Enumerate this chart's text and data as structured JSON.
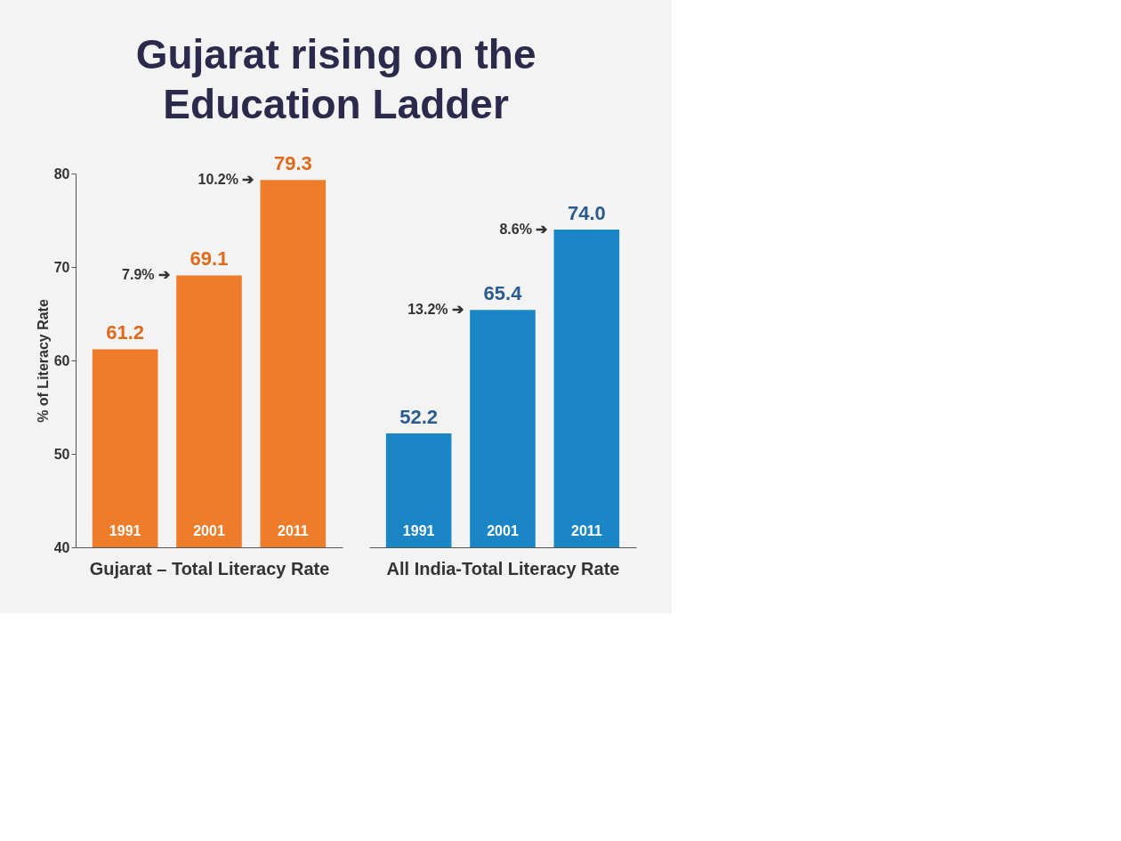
{
  "chart_data": [
    {
      "type": "bar",
      "title": "Gujarat rising on the\nEducation Ladder",
      "ylabel": "% of Literacy Rate",
      "xlabel": "Gujarat – Total Literacy Rate",
      "categories": [
        "1991",
        "2001",
        "2011"
      ],
      "values": [
        61.2,
        69.1,
        79.3
      ],
      "value_labels": [
        "61.2",
        "69.1",
        "79.3"
      ],
      "color": "#ee7d2b",
      "ylim": [
        40,
        80
      ],
      "yticks": [
        40,
        50,
        60,
        70,
        80
      ],
      "grid": false,
      "annotations": [
        "7.9% ➔",
        "10.2% ➔"
      ]
    },
    {
      "type": "bar",
      "xlabel": "All India-Total Literacy Rate",
      "categories": [
        "1991",
        "2001",
        "2011"
      ],
      "values": [
        52.2,
        65.4,
        74.0
      ],
      "value_labels": [
        "52.2",
        "65.4",
        "74.0"
      ],
      "color": "#1a86c6",
      "ylim": [
        40,
        80
      ],
      "yticks": [
        40,
        50,
        60,
        70,
        80
      ],
      "grid": false,
      "tick_labels": "x",
      "annotations": [
        "13.2% ➔",
        "8.6% ➔"
      ]
    }
  ]
}
